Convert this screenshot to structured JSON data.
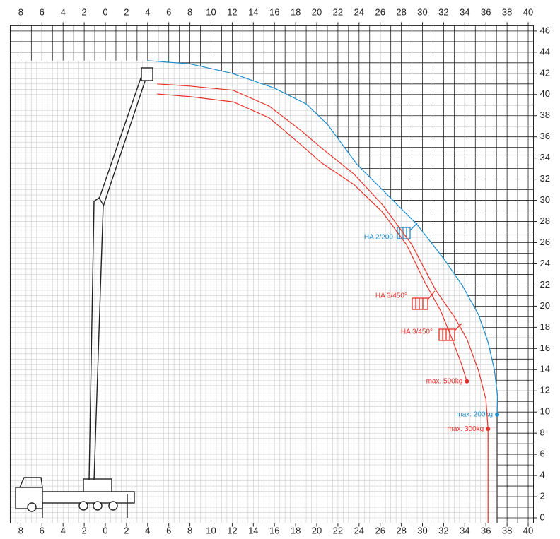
{
  "chart_data": {
    "type": "line",
    "xlim": [
      -9,
      40.5
    ],
    "ylim": [
      -0.5,
      46.5
    ],
    "xticks": [
      {
        "value": -8,
        "label": "8"
      },
      {
        "value": -6,
        "label": "6"
      },
      {
        "value": -4,
        "label": "4"
      },
      {
        "value": -2,
        "label": "2"
      },
      0,
      2,
      4,
      6,
      8,
      10,
      12,
      14,
      16,
      18,
      20,
      22,
      24,
      26,
      28,
      30,
      32,
      34,
      36,
      38,
      40
    ],
    "yticks": [
      0,
      2,
      4,
      6,
      8,
      10,
      12,
      14,
      16,
      18,
      20,
      22,
      24,
      26,
      28,
      30,
      32,
      34,
      36,
      38,
      40,
      42,
      44,
      46
    ],
    "grid": true,
    "series": [
      {
        "name": "max. 200kg",
        "color": "#1a8ccc",
        "x": [
          4.0,
          8,
          12,
          16,
          19,
          21,
          23.8,
          26.5,
          29.5,
          32,
          33.8,
          35.3,
          36.2,
          36.8,
          37.1,
          37.06
        ],
        "values": [
          43.2,
          42.9,
          42.0,
          40.6,
          39.1,
          37.2,
          33.4,
          30.7,
          27.7,
          24.5,
          21.9,
          19.2,
          16.6,
          14.0,
          11.5,
          9.75
        ]
      },
      {
        "name": "max. 300kg",
        "color": "#e6332a",
        "x": [
          4.9,
          8,
          12.1,
          15.5,
          18.5,
          20.5,
          23.5,
          26.2,
          29,
          31.2,
          33,
          34.2,
          35.3,
          36.0,
          36.2
        ],
        "values": [
          41.0,
          40.8,
          40.4,
          38.9,
          36.6,
          34.9,
          32.5,
          29.6,
          25.8,
          21.6,
          19.0,
          16.9,
          13.9,
          11.2,
          8.4
        ]
      },
      {
        "name": "max. 500kg",
        "color": "#e6332a",
        "x": [
          4.9,
          8,
          12.1,
          15.5,
          18.1,
          20.5,
          23.5,
          26.2,
          28.5,
          30.2,
          31.7,
          32.8,
          33.7,
          34.2
        ],
        "values": [
          40.05,
          39.8,
          39.3,
          37.8,
          35.6,
          33.5,
          31.5,
          28.9,
          25.8,
          22.3,
          19.6,
          16.9,
          14.5,
          12.9
        ]
      }
    ],
    "annotations": [
      {
        "text": "HA 2/200",
        "color": "#1a8ccc"
      },
      {
        "text": "HA 3/450°",
        "color": "#e6332a"
      },
      {
        "text": "HA 3/450°",
        "color": "#e6332a"
      }
    ]
  }
}
